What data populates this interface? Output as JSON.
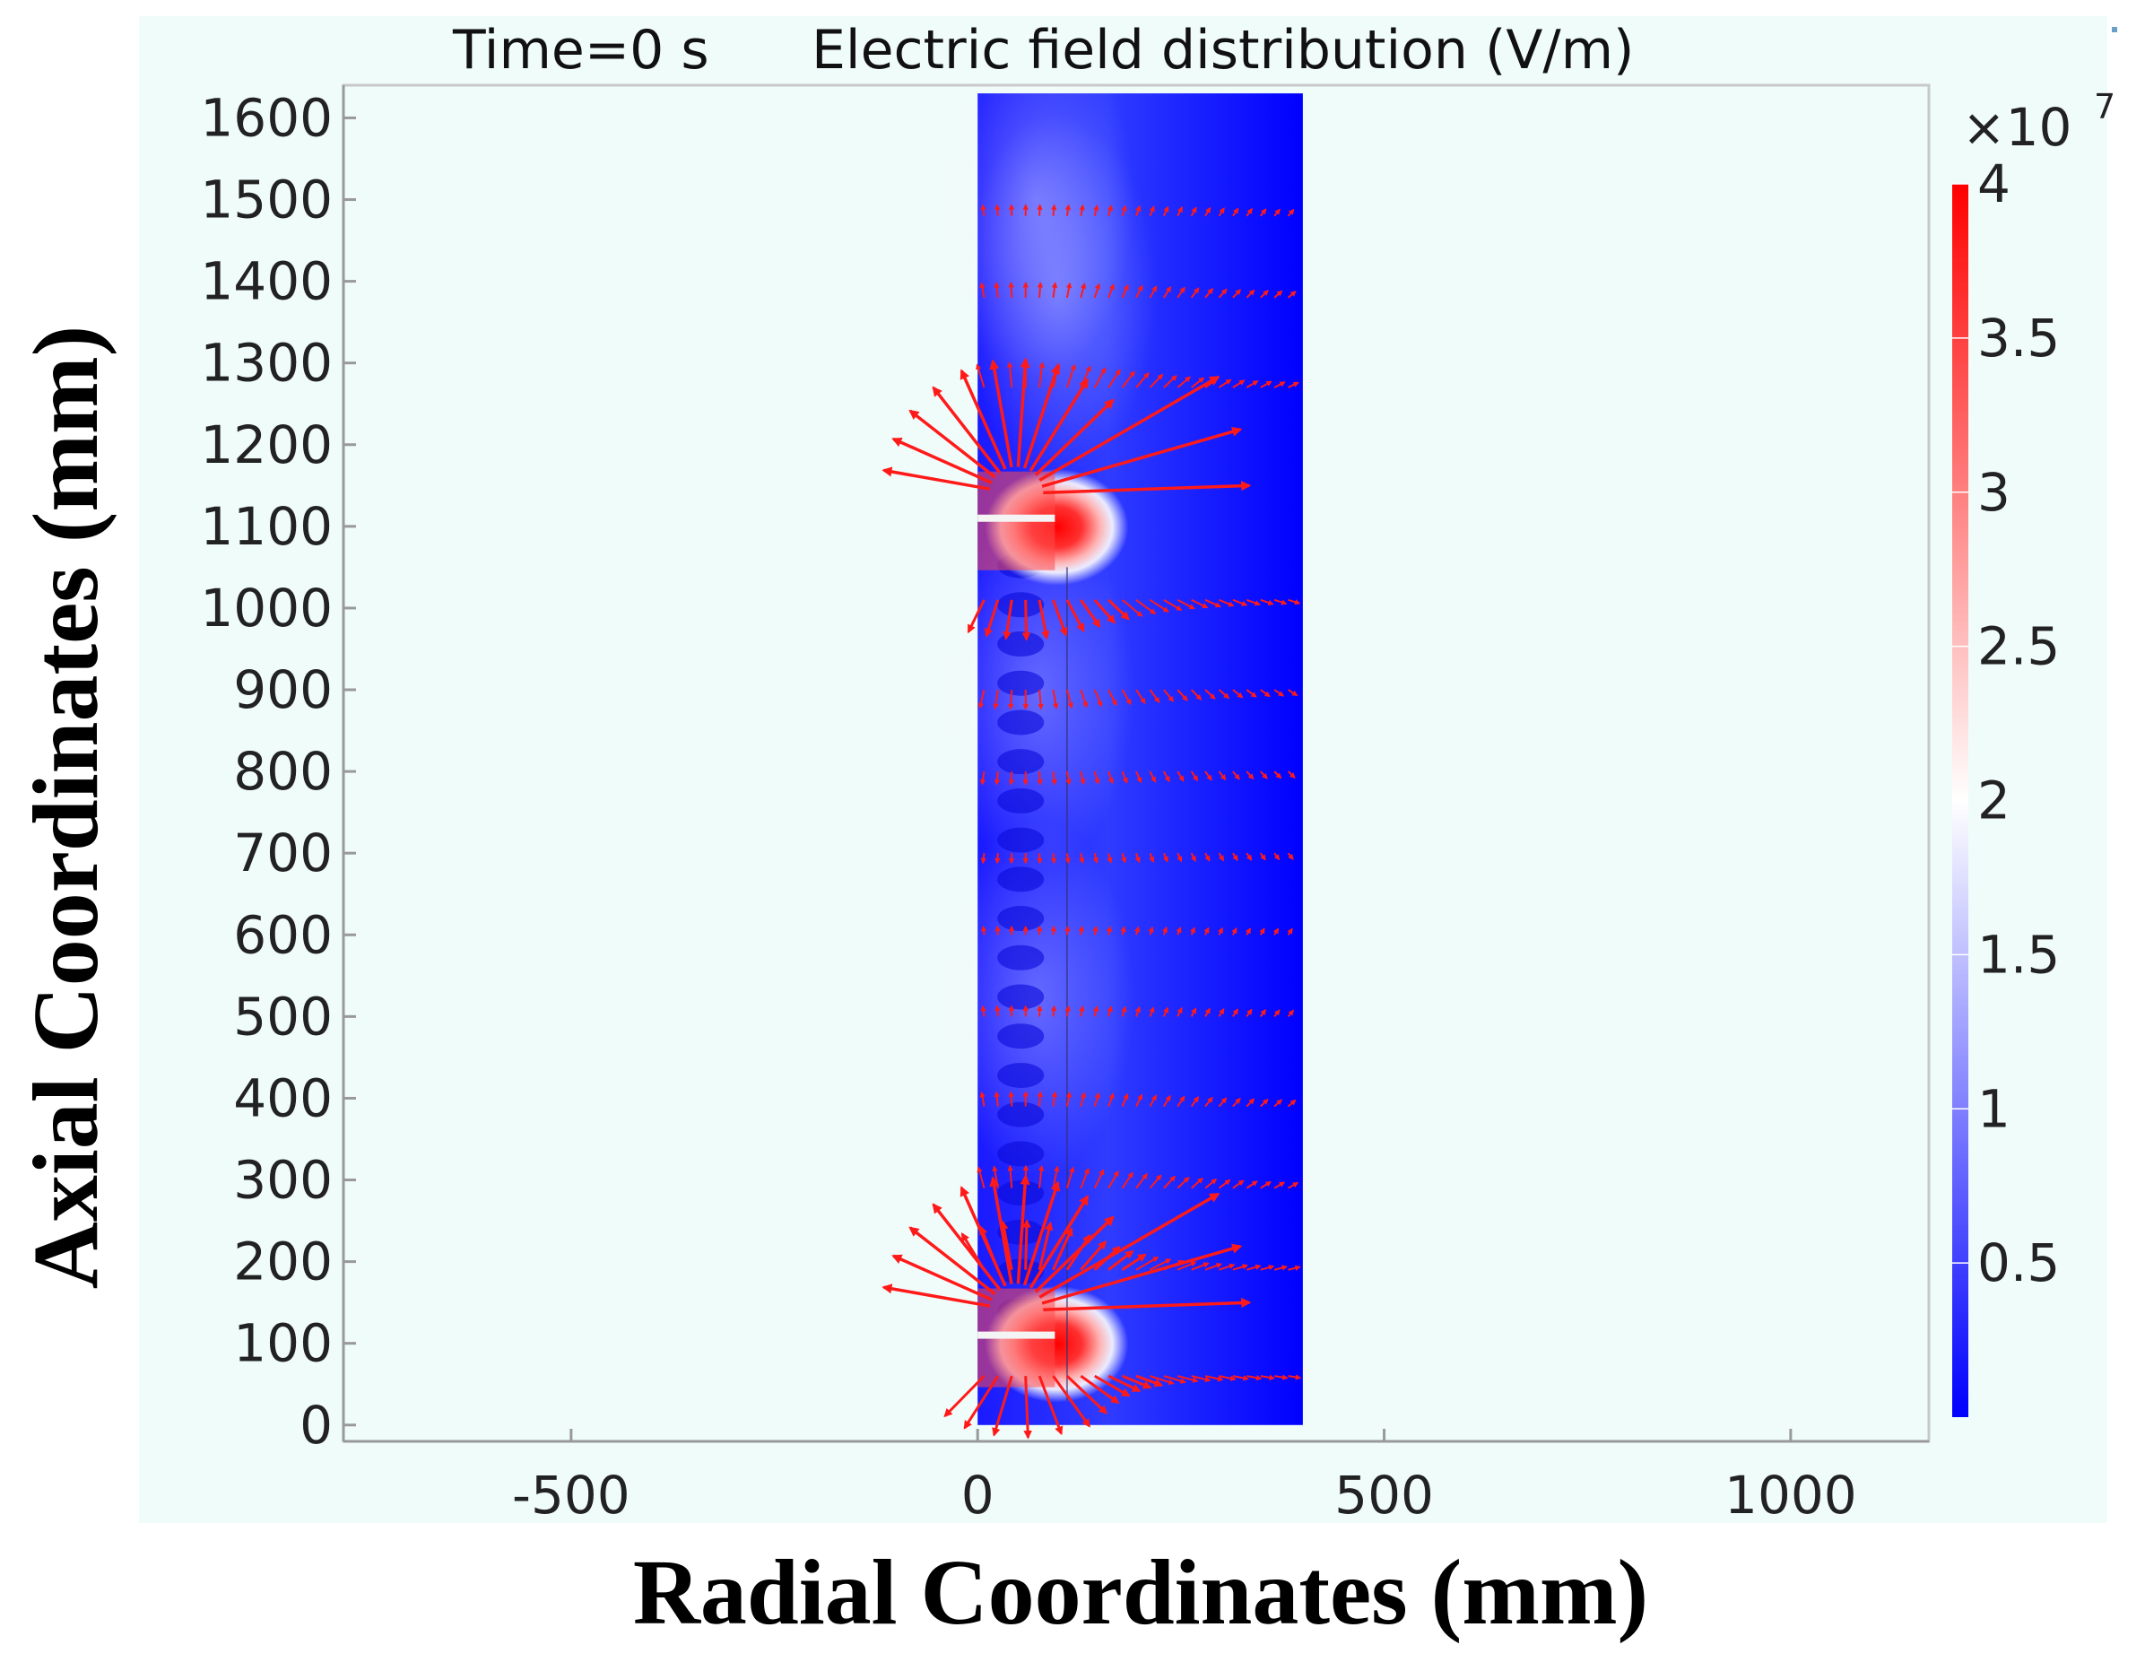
{
  "chart_data": {
    "type": "heatmap",
    "title_time": "Time=0 s",
    "title_quantity": "Electric field distribution (V/m)",
    "xlabel": "Radial Coordinates (mm)",
    "ylabel": "Axial Coordinates (mm)",
    "xlim": [
      -780,
      1170
    ],
    "ylim": [
      -20,
      1640
    ],
    "x_ticks": [
      "-500",
      "0",
      "500",
      "1000"
    ],
    "x_tick_values": [
      -500,
      0,
      500,
      1000
    ],
    "y_ticks": [
      "0",
      "100",
      "200",
      "300",
      "400",
      "500",
      "600",
      "700",
      "800",
      "900",
      "1000",
      "1100",
      "1200",
      "1300",
      "1400",
      "1500",
      "1600"
    ],
    "y_tick_values": [
      0,
      100,
      200,
      300,
      400,
      500,
      600,
      700,
      800,
      900,
      1000,
      1100,
      1200,
      1300,
      1400,
      1500,
      1600
    ],
    "domain": {
      "r_min": 0,
      "r_max": 400,
      "z_min": 0,
      "z_max": 1630
    },
    "electrodes": [
      {
        "z": 110,
        "r_max": 95
      },
      {
        "z": 1110,
        "r_max": 95
      }
    ],
    "colorbar": {
      "multiplier": "×10",
      "exponent": "7",
      "range": [
        0,
        4
      ],
      "tick_labels": [
        "4",
        "3.5",
        "3",
        "2.5",
        "2",
        "1.5",
        "1",
        "0.5"
      ],
      "tick_values": [
        4,
        3.5,
        3,
        2.5,
        2,
        1.5,
        1,
        0.5
      ],
      "colors": {
        "low": "#0000ff",
        "mid": "#ffffff",
        "high": "#ff0000"
      }
    },
    "arrow_color": "#ff1a1a",
    "colors": {
      "page_background": "#f0fcfa",
      "plot_background": "#f0fcfa"
    }
  }
}
